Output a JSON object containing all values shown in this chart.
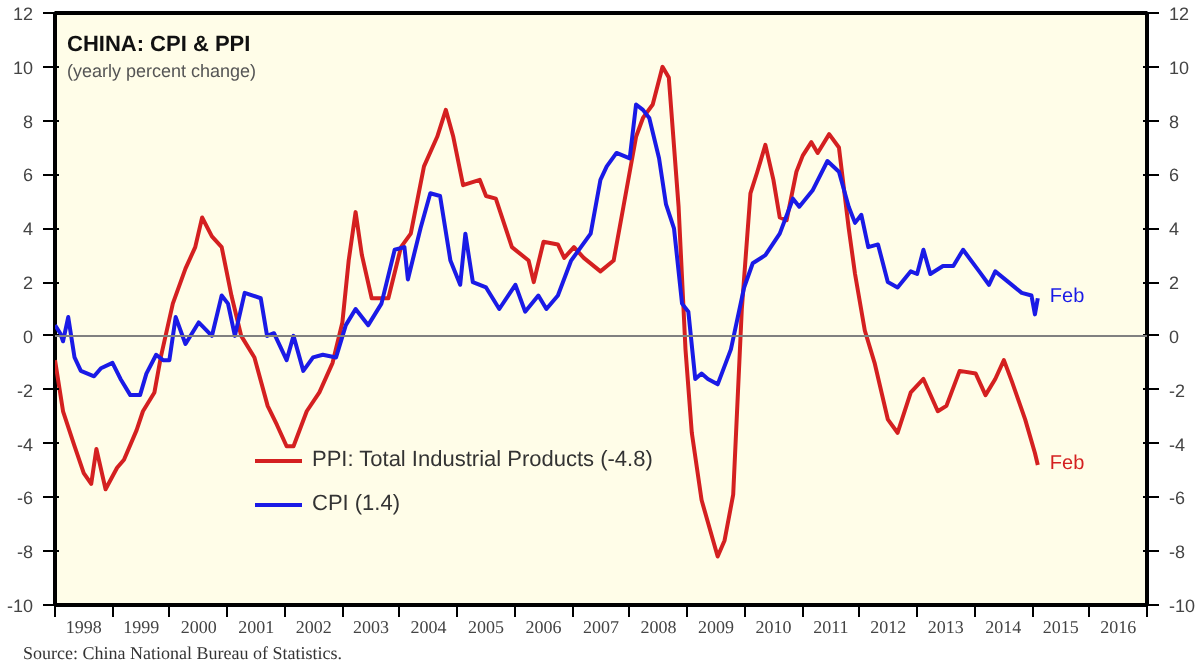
{
  "chart_data": {
    "type": "line",
    "title": "CHINA: CPI & PPI",
    "subtitle": "(yearly percent change)",
    "xlim": [
      1998,
      2017
    ],
    "ylim": [
      -10,
      12
    ],
    "y2lim": [
      -10,
      12
    ],
    "xticks": [
      {
        "value": 1998,
        "label": null
      },
      {
        "value": 1998.5,
        "label": "1998"
      },
      {
        "value": 1999,
        "label": null
      },
      {
        "value": 1999.5,
        "label": "1999"
      },
      {
        "value": 2000,
        "label": null
      },
      {
        "value": 2000.5,
        "label": "2000"
      },
      {
        "value": 2001,
        "label": null
      },
      {
        "value": 2001.5,
        "label": "2001"
      },
      {
        "value": 2002,
        "label": null
      },
      {
        "value": 2002.5,
        "label": "2002"
      },
      {
        "value": 2003,
        "label": null
      },
      {
        "value": 2003.5,
        "label": "2003"
      },
      {
        "value": 2004,
        "label": null
      },
      {
        "value": 2004.5,
        "label": "2004"
      },
      {
        "value": 2005,
        "label": null
      },
      {
        "value": 2005.5,
        "label": "2005"
      },
      {
        "value": 2006,
        "label": null
      },
      {
        "value": 2006.5,
        "label": "2006"
      },
      {
        "value": 2007,
        "label": null
      },
      {
        "value": 2007.5,
        "label": "2007"
      },
      {
        "value": 2008,
        "label": null
      },
      {
        "value": 2008.5,
        "label": "2008"
      },
      {
        "value": 2009,
        "label": null
      },
      {
        "value": 2009.5,
        "label": "2009"
      },
      {
        "value": 2010,
        "label": null
      },
      {
        "value": 2010.5,
        "label": "2010"
      },
      {
        "value": 2011,
        "label": null
      },
      {
        "value": 2011.5,
        "label": "2011"
      },
      {
        "value": 2012,
        "label": null
      },
      {
        "value": 2012.5,
        "label": "2012"
      },
      {
        "value": 2013,
        "label": null
      },
      {
        "value": 2013.5,
        "label": "2013"
      },
      {
        "value": 2014,
        "label": null
      },
      {
        "value": 2014.5,
        "label": "2014"
      },
      {
        "value": 2015,
        "label": null
      },
      {
        "value": 2015.5,
        "label": "2015"
      },
      {
        "value": 2016,
        "label": null
      },
      {
        "value": 2016.5,
        "label": "2016"
      },
      {
        "value": 2017,
        "label": null
      }
    ],
    "yticks": [
      -10,
      -8,
      -6,
      -4,
      -2,
      0,
      2,
      4,
      6,
      8,
      10,
      12
    ],
    "y2ticks": [
      -10,
      -8,
      -6,
      -4,
      -2,
      0,
      2,
      4,
      6,
      8,
      10,
      12
    ],
    "grid": false,
    "legend": "bottom left",
    "line_style": "solid",
    "ref_lines": [
      {
        "axis": "y",
        "value": 0,
        "label": null,
        "color": "#808080"
      }
    ],
    "annotations": [
      {
        "text": "Feb",
        "x": 2015.1,
        "y": 1.4
      },
      {
        "text": "Feb",
        "x": 2015.1,
        "y": -4.8
      },
      "Source: China National Bureau of Statistics."
    ],
    "series": [
      {
        "name": "PPI: Total Industrial Products (-4.8)",
        "color": "#d42020",
        "x": [
          1998.0,
          1998.14,
          1998.34,
          1998.5,
          1998.63,
          1998.72,
          1998.88,
          1999.08,
          1999.2,
          1999.42,
          1999.53,
          1999.73,
          1999.84,
          2000.05,
          2000.27,
          2000.44,
          2000.56,
          2000.73,
          2000.9,
          2001.07,
          2001.24,
          2001.47,
          2001.7,
          2001.86,
          2002.03,
          2002.15,
          2002.38,
          2002.6,
          2002.83,
          2003.0,
          2003.11,
          2003.23,
          2003.34,
          2003.51,
          2003.8,
          2004.02,
          2004.19,
          2004.42,
          2004.65,
          2004.8,
          2004.93,
          2005.1,
          2005.39,
          2005.5,
          2005.67,
          2005.95,
          2006.24,
          2006.33,
          2006.5,
          2006.75,
          2006.86,
          2007.03,
          2007.2,
          2007.49,
          2007.72,
          2007.89,
          2008.11,
          2008.23,
          2008.4,
          2008.57,
          2008.68,
          2008.85,
          2008.97,
          2009.08,
          2009.25,
          2009.53,
          2009.65,
          2009.8,
          2009.95,
          2010.1,
          2010.22,
          2010.36,
          2010.5,
          2010.61,
          2010.73,
          2010.9,
          2011.01,
          2011.16,
          2011.27,
          2011.47,
          2011.64,
          2011.81,
          2011.92,
          2012.09,
          2012.26,
          2012.49,
          2012.66,
          2012.89,
          2013.11,
          2013.36,
          2013.51,
          2013.74,
          2014.02,
          2014.19,
          2014.36,
          2014.51,
          2014.65,
          2014.88,
          2015.05,
          2015.1
        ],
        "values": [
          -0.9,
          -2.8,
          -4.1,
          -5.1,
          -5.5,
          -4.2,
          -5.7,
          -4.9,
          -4.6,
          -3.5,
          -2.8,
          -2.1,
          -0.8,
          1.2,
          2.5,
          3.3,
          4.4,
          3.7,
          3.3,
          1.5,
          0,
          -0.8,
          -2.6,
          -3.3,
          -4.1,
          -4.1,
          -2.8,
          -2.1,
          -1.0,
          0.5,
          2.8,
          4.6,
          3.0,
          1.4,
          1.4,
          3.3,
          3.8,
          6.3,
          7.4,
          8.4,
          7.4,
          5.6,
          5.8,
          5.2,
          5.1,
          3.3,
          2.8,
          2.0,
          3.5,
          3.4,
          2.9,
          3.3,
          2.9,
          2.4,
          2.8,
          4.8,
          7.4,
          8.1,
          8.6,
          10.0,
          9.6,
          4.8,
          -0.5,
          -3.6,
          -6.1,
          -8.2,
          -7.6,
          -5.9,
          1.0,
          5.3,
          6.1,
          7.1,
          5.8,
          4.4,
          4.3,
          6.1,
          6.7,
          7.2,
          6.8,
          7.5,
          7.0,
          4.0,
          2.3,
          0.2,
          -1.0,
          -3.1,
          -3.6,
          -2.1,
          -1.6,
          -2.8,
          -2.6,
          -1.3,
          -1.4,
          -2.2,
          -1.6,
          -0.9,
          -1.7,
          -3.1,
          -4.35,
          -4.8
        ]
      },
      {
        "name": "CPI (1.4)",
        "color": "#1a1ae6",
        "x": [
          1998.0,
          1998.09,
          1998.14,
          1998.23,
          1998.34,
          1998.45,
          1998.68,
          1998.8,
          1999.0,
          1999.14,
          1999.31,
          1999.48,
          1999.59,
          1999.76,
          1999.88,
          1999.99,
          2000.1,
          2000.27,
          2000.5,
          2000.73,
          2000.9,
          2001.01,
          2001.13,
          2001.3,
          2001.58,
          2001.69,
          2001.81,
          2001.92,
          2002.03,
          2002.15,
          2002.32,
          2002.49,
          2002.66,
          2002.89,
          2003.06,
          2003.23,
          2003.45,
          2003.68,
          2003.91,
          2004.08,
          2004.14,
          2004.36,
          2004.53,
          2004.7,
          2004.88,
          2005.05,
          2005.14,
          2005.27,
          2005.5,
          2005.73,
          2006.01,
          2006.18,
          2006.41,
          2006.55,
          2006.75,
          2006.98,
          2007.15,
          2007.32,
          2007.49,
          2007.6,
          2007.77,
          2008.0,
          2008.11,
          2008.23,
          2008.34,
          2008.51,
          2008.63,
          2008.77,
          2008.91,
          2009.02,
          2009.14,
          2009.25,
          2009.36,
          2009.53,
          2009.76,
          2009.99,
          2010.14,
          2010.36,
          2010.61,
          2010.84,
          2010.95,
          2011.18,
          2011.44,
          2011.64,
          2011.81,
          2011.92,
          2012.03,
          2012.15,
          2012.32,
          2012.49,
          2012.66,
          2012.89,
          2013.0,
          2013.11,
          2013.23,
          2013.45,
          2013.63,
          2013.8,
          2014.08,
          2014.25,
          2014.36,
          2014.59,
          2014.82,
          2014.99,
          2015.05,
          2015.1
        ],
        "values": [
          0.4,
          0.1,
          -0.2,
          0.7,
          -0.8,
          -1.3,
          -1.5,
          -1.2,
          -1.0,
          -1.6,
          -2.2,
          -2.2,
          -1.4,
          -0.7,
          -0.9,
          -0.9,
          0.7,
          -0.3,
          0.5,
          0,
          1.5,
          1.2,
          0,
          1.6,
          1.4,
          0,
          0.1,
          -0.4,
          -0.9,
          0,
          -1.3,
          -0.8,
          -0.7,
          -0.8,
          0.4,
          1.0,
          0.4,
          1.2,
          3.2,
          3.3,
          2.1,
          4.0,
          5.3,
          5.2,
          2.8,
          1.9,
          3.8,
          2.0,
          1.8,
          1.0,
          1.9,
          0.9,
          1.5,
          1.0,
          1.5,
          2.8,
          3.3,
          3.8,
          5.8,
          6.3,
          6.8,
          6.6,
          8.6,
          8.4,
          8.1,
          6.6,
          4.9,
          4.0,
          1.2,
          0.9,
          -1.6,
          -1.4,
          -1.6,
          -1.8,
          -0.5,
          1.8,
          2.7,
          3.0,
          3.8,
          5.1,
          4.8,
          5.4,
          6.5,
          6.1,
          4.8,
          4.2,
          4.5,
          3.3,
          3.4,
          2.0,
          1.8,
          2.4,
          2.3,
          3.2,
          2.3,
          2.6,
          2.6,
          3.2,
          2.4,
          1.9,
          2.4,
          2.0,
          1.6,
          1.5,
          0.8,
          1.4
        ]
      }
    ]
  }
}
